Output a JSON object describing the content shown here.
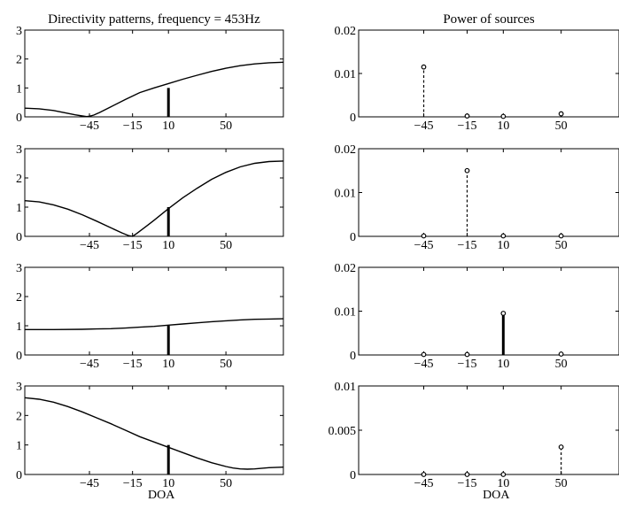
{
  "chart_data": [
    {
      "type": "line",
      "title": "Directivity patterns, frequency = 453Hz",
      "xlabel": "",
      "ylabel": "",
      "xlim": [
        -90,
        90
      ],
      "ylim": [
        0,
        3
      ],
      "xticks": [
        -45,
        -15,
        10,
        50
      ],
      "xtick_labels": [
        "−45",
        "−15",
        "10",
        "50"
      ],
      "yticks": [
        0,
        1,
        2,
        3
      ],
      "ytick_labels": [
        "0",
        "1",
        "2",
        "3"
      ],
      "marker": {
        "x": 10,
        "y": 1
      },
      "series": [
        {
          "x": [
            -90,
            -80,
            -70,
            -60,
            -55,
            -50,
            -47,
            -45,
            -42,
            -38,
            -30,
            -20,
            -10,
            0,
            10,
            20,
            30,
            40,
            50,
            60,
            70,
            80,
            90
          ],
          "y": [
            0.3,
            0.28,
            0.22,
            0.12,
            0.07,
            0.03,
            0.01,
            0.02,
            0.06,
            0.15,
            0.35,
            0.6,
            0.84,
            1.0,
            1.15,
            1.3,
            1.44,
            1.57,
            1.68,
            1.77,
            1.83,
            1.87,
            1.89
          ]
        }
      ]
    },
    {
      "type": "bar",
      "title": "Power of sources",
      "xlabel": "",
      "xlim": [
        -90,
        90
      ],
      "ylim": [
        0,
        0.02
      ],
      "xticks": [
        -45,
        -15,
        10,
        50
      ],
      "xtick_labels": [
        "−45",
        "−15",
        "10",
        "50"
      ],
      "yticks": [
        0,
        0.01,
        0.02
      ],
      "ytick_labels": [
        "0",
        "0.01",
        "0.02"
      ],
      "x": [
        -45,
        -15,
        10,
        50
      ],
      "values": [
        0.0115,
        0.0002,
        0.0001,
        0.0007
      ],
      "highlight": -45
    },
    {
      "type": "line",
      "title": "",
      "xlabel": "",
      "xlim": [
        -90,
        90
      ],
      "ylim": [
        0,
        3
      ],
      "xticks": [
        -45,
        -15,
        10,
        50
      ],
      "xtick_labels": [
        "−45",
        "−15",
        "10",
        "50"
      ],
      "yticks": [
        0,
        1,
        2,
        3
      ],
      "ytick_labels": [
        "0",
        "1",
        "2",
        "3"
      ],
      "marker": {
        "x": 10,
        "y": 1
      },
      "series": [
        {
          "x": [
            -90,
            -80,
            -70,
            -60,
            -50,
            -40,
            -30,
            -22,
            -18,
            -15,
            -12,
            -5,
            0,
            10,
            20,
            30,
            40,
            50,
            60,
            70,
            80,
            90
          ],
          "y": [
            1.22,
            1.18,
            1.08,
            0.93,
            0.74,
            0.52,
            0.29,
            0.11,
            0.03,
            0.0,
            0.1,
            0.36,
            0.55,
            0.95,
            1.32,
            1.65,
            1.95,
            2.19,
            2.38,
            2.5,
            2.56,
            2.58
          ]
        }
      ]
    },
    {
      "type": "bar",
      "title": "",
      "xlabel": "",
      "xlim": [
        -90,
        90
      ],
      "ylim": [
        0,
        0.02
      ],
      "xticks": [
        -45,
        -15,
        10,
        50
      ],
      "xtick_labels": [
        "−45",
        "−15",
        "10",
        "50"
      ],
      "yticks": [
        0,
        0.01,
        0.02
      ],
      "ytick_labels": [
        "0",
        "0.01",
        "0.02"
      ],
      "x": [
        -45,
        -15,
        10,
        50
      ],
      "values": [
        0.0001,
        0.015,
        0.0001,
        0.0001
      ],
      "highlight": -15
    },
    {
      "type": "line",
      "title": "",
      "xlabel": "",
      "xlim": [
        -90,
        90
      ],
      "ylim": [
        0,
        3
      ],
      "xticks": [
        -45,
        -15,
        10,
        50
      ],
      "xtick_labels": [
        "−45",
        "−15",
        "10",
        "50"
      ],
      "yticks": [
        0,
        1,
        2,
        3
      ],
      "ytick_labels": [
        "0",
        "1",
        "2",
        "3"
      ],
      "marker": {
        "x": 10,
        "y": 1
      },
      "series": [
        {
          "x": [
            -90,
            -70,
            -50,
            -40,
            -30,
            -20,
            -10,
            0,
            10,
            20,
            30,
            40,
            50,
            60,
            70,
            80,
            90
          ],
          "y": [
            0.87,
            0.87,
            0.88,
            0.89,
            0.9,
            0.92,
            0.95,
            0.98,
            1.02,
            1.06,
            1.1,
            1.14,
            1.17,
            1.2,
            1.22,
            1.23,
            1.24
          ]
        }
      ]
    },
    {
      "type": "bar",
      "title": "",
      "xlabel": "",
      "xlim": [
        -90,
        90
      ],
      "ylim": [
        0,
        0.02
      ],
      "xticks": [
        -45,
        -15,
        10,
        50
      ],
      "xtick_labels": [
        "−45",
        "−15",
        "10",
        "50"
      ],
      "yticks": [
        0,
        0.01,
        0.02
      ],
      "ytick_labels": [
        "0",
        "0.01",
        "0.02"
      ],
      "x": [
        -45,
        -15,
        10,
        50
      ],
      "values": [
        0.0001,
        0.0001,
        0.0095,
        0.0002
      ],
      "highlight": 10
    },
    {
      "type": "line",
      "title": "",
      "xlabel": "DOA",
      "xlim": [
        -90,
        90
      ],
      "ylim": [
        0,
        3
      ],
      "xticks": [
        -45,
        -15,
        10,
        50
      ],
      "xtick_labels": [
        "−45",
        "−15",
        "10",
        "50"
      ],
      "yticks": [
        0,
        1,
        2,
        3
      ],
      "ytick_labels": [
        "0",
        "1",
        "2",
        "3"
      ],
      "marker": {
        "x": 10,
        "y": 1
      },
      "series": [
        {
          "x": [
            -90,
            -80,
            -70,
            -60,
            -50,
            -40,
            -30,
            -20,
            -10,
            0,
            10,
            20,
            30,
            40,
            50,
            55,
            60,
            65,
            70,
            80,
            90
          ],
          "y": [
            2.6,
            2.55,
            2.45,
            2.3,
            2.12,
            1.92,
            1.72,
            1.5,
            1.28,
            1.1,
            0.92,
            0.74,
            0.56,
            0.4,
            0.27,
            0.22,
            0.19,
            0.18,
            0.19,
            0.23,
            0.25
          ]
        }
      ]
    },
    {
      "type": "bar",
      "title": "",
      "xlabel": "DOA",
      "xlim": [
        -90,
        90
      ],
      "ylim": [
        0,
        0.01
      ],
      "xticks": [
        -45,
        -15,
        10,
        50
      ],
      "xtick_labels": [
        "−45",
        "−15",
        "10",
        "50"
      ],
      "yticks": [
        0,
        0.005,
        0.01
      ],
      "ytick_labels": [
        "0",
        "0.005",
        "0.01"
      ],
      "x": [
        -45,
        -15,
        10,
        50
      ],
      "values": [
        0.0,
        0.0,
        0.0,
        0.0031
      ],
      "highlight": 50
    }
  ]
}
